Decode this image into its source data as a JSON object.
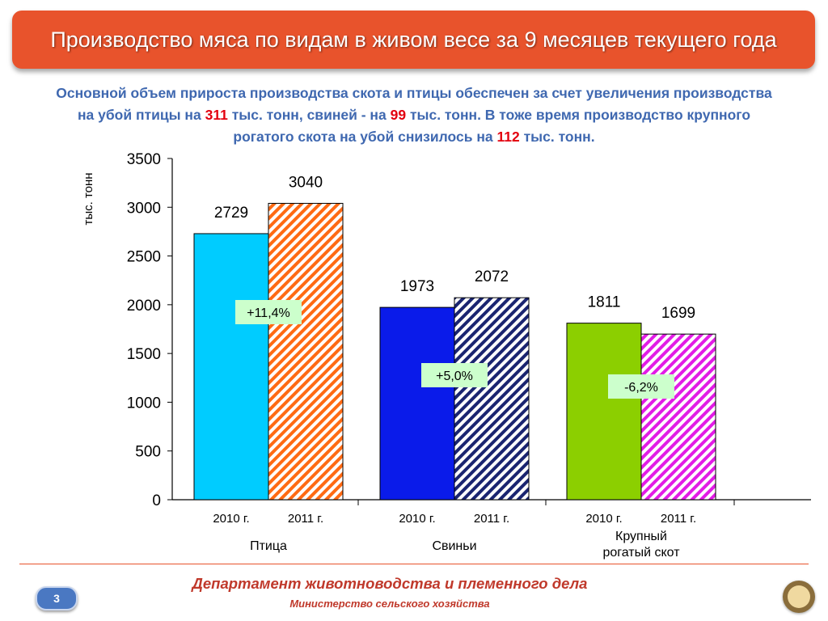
{
  "header": {
    "title": "Производство мяса по видам в живом весе за 9 месяцев текущего года"
  },
  "subtitle": {
    "l1": "Основной объем прироста производства скота и птицы обеспечен за счет увеличения производства",
    "l2a": "на убой птицы на ",
    "n1": "311",
    "l2b": " тыс. тонн, свиней -  на ",
    "n2": "99",
    "l2c": " тыс. тонн. В тоже время производство крупного",
    "l3a": "рогатого скота на убой снизилось на ",
    "n3": "112",
    "l3b": " тыс. тонн."
  },
  "chart_data": {
    "type": "bar",
    "ylabel": "тыс. тонн",
    "ylim": [
      0,
      3500
    ],
    "yticks": [
      "0",
      "500",
      "1000",
      "1500",
      "2000",
      "2500",
      "3000",
      "3500"
    ],
    "groups": [
      {
        "name": "Птица",
        "change": "+11,4%",
        "bars": [
          {
            "label": "2010 г.",
            "value": 2729,
            "value_label": "2729",
            "color": "#00ccff",
            "pattern": "solid"
          },
          {
            "label": "2011 г.",
            "value": 3040,
            "value_label": "3040",
            "color": "#ff6a13",
            "pattern": "hatch"
          }
        ]
      },
      {
        "name": "Свиньи",
        "change": "+5,0%",
        "bars": [
          {
            "label": "2010 г.",
            "value": 1973,
            "value_label": "1973",
            "color": "#0a1bea",
            "pattern": "solid"
          },
          {
            "label": "2011 г.",
            "value": 2072,
            "value_label": "2072",
            "color": "#1a2470",
            "pattern": "hatch"
          }
        ]
      },
      {
        "name": "Крупный рогатый скот",
        "name_lines": [
          "Крупный",
          "рогатый скот"
        ],
        "change": "-6,2%",
        "bars": [
          {
            "label": "2010 г.",
            "value": 1811,
            "value_label": "1811",
            "color": "#8ccf00",
            "pattern": "solid"
          },
          {
            "label": "2011 г.",
            "value": 1699,
            "value_label": "1699",
            "color": "#e21ce6",
            "pattern": "hatch"
          }
        ]
      }
    ],
    "change_box_color": "#ccffcc"
  },
  "footer": {
    "department": "Департамент животноводства и племенного дела",
    "ministry": "Министерство сельского хозяйства",
    "page": "3"
  }
}
